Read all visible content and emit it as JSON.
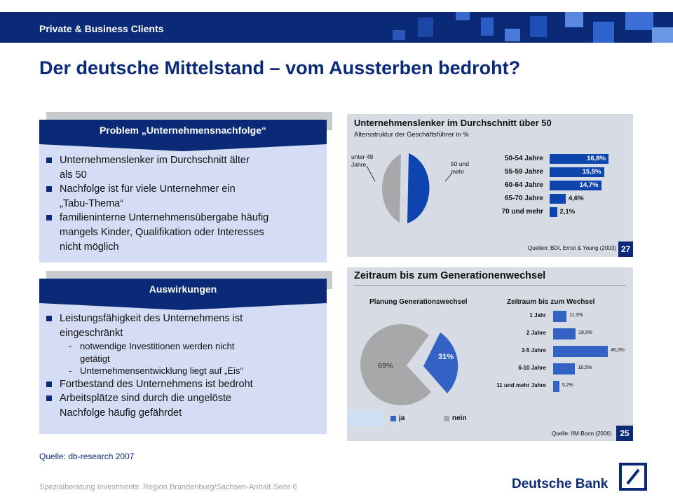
{
  "header": {
    "label": "Private & Business Clients"
  },
  "title": "Der deutsche Mittelstand – vom Aussterben bedroht?",
  "panels": {
    "problem": {
      "heading": "Problem „Unternehmensnachfolge“",
      "bullets": [
        {
          "text": "Unternehmenslenker  im Durchschnitt  älter",
          "cont": "als 50"
        },
        {
          "text": "Nachfolge  ist für viele Unternehmer  ein",
          "cont": "„Tabu-Thema“"
        },
        {
          "text": "familieninterne  Unternehmensübergabe  häufig",
          "cont": "mangels Kinder, Qualifikation  oder Interesses",
          "cont2": "nicht möglich"
        }
      ]
    },
    "effects": {
      "heading": "Auswirkungen",
      "bullets": [
        {
          "text": "Leistungsfähigkeit des Unternehmens  ist",
          "cont": "eingeschränkt"
        },
        {
          "text": "Fortbestand  des Unternehmens  ist bedroht"
        },
        {
          "text": "Arbeitsplätze  sind durch die ungelöste",
          "cont": "Nachfolge  häufig gefährdet"
        }
      ],
      "subbullets": [
        {
          "dash": "-",
          "text": "notwendige Investitionen werden nicht",
          "cont": "getätigt"
        },
        {
          "dash": "-",
          "text": "Unternehmensentwicklung liegt auf „Eis“"
        }
      ]
    }
  },
  "chart1": {
    "title": "Unternehmenslenker im Durchschnitt über 50",
    "subtitle": "Altersstruktur der Geschäftsführer in %",
    "pie_label_left": [
      "unter 49",
      "Jahre"
    ],
    "pie_label_right": [
      "50 und",
      "mehr"
    ],
    "source": "Quellen: BDI, Ernst & Young (2003)",
    "page": "27"
  },
  "chart2": {
    "title": "Zeitraum bis zum Generationenwechsel",
    "pie_title": "Planung Generationswechsel",
    "bar_title": "Zeitraum bis zum Wechsel",
    "legend": [
      "ja",
      "nein"
    ],
    "source": "Quelle: IfM-Bonn (2006)",
    "page": "25"
  },
  "chart_data": [
    {
      "type": "bar",
      "title": "Unternehmenslenker im Durchschnitt über 50",
      "subtitle": "Altersstruktur der Geschäftsführer in %",
      "categories": [
        "50-54 Jahre",
        "55-59 Jahre",
        "60-64 Jahre",
        "65-70 Jahre",
        "70 und mehr"
      ],
      "values": [
        16.8,
        15.5,
        14.7,
        4.6,
        2.1
      ],
      "value_labels": [
        "16,8%",
        "15,5%",
        "14,7%",
        "4,6%",
        "2,1%"
      ],
      "pie": {
        "slices": [
          "unter 49 Jahre",
          "50 und mehr"
        ],
        "share_50_plus": 53.7
      }
    },
    {
      "type": "pie",
      "title": "Planung Generationswechsel",
      "categories": [
        "ja",
        "nein"
      ],
      "values": [
        31,
        69
      ],
      "value_labels": [
        "31%",
        "69%"
      ]
    },
    {
      "type": "bar",
      "title": "Zeitraum bis zum Wechsel",
      "categories": [
        "1 Jahr",
        "2 Jahre",
        "3-5 Jahre",
        "6-10 Jahre",
        "11 und mehr Jahre"
      ],
      "values": [
        11.3,
        18.9,
        46.0,
        18.5,
        5.2
      ],
      "value_labels": [
        "11,3%",
        "18,9%",
        "46,0%",
        "18,5%",
        "5,2%"
      ]
    }
  ],
  "footer": {
    "source_note": "Quelle:  db-research 2007",
    "text": "Spezialberatung Investments: Region Brandenburg/Sachsen-Anhalt     Seite 6",
    "brand": "Deutsche Bank"
  },
  "colors": {
    "brand_blue": "#0a2a78",
    "bar_blue": "#0e44ae",
    "pie_grey": "#a8a8ab",
    "panel_fill": "#d5ddf5"
  }
}
